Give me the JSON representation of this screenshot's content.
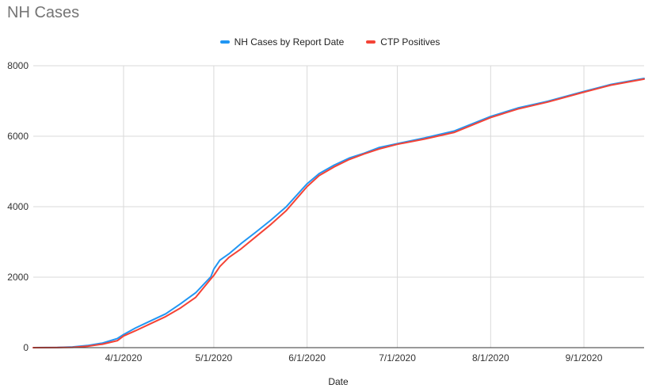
{
  "title": "NH Cases",
  "chart_data": {
    "type": "line",
    "title": "NH Cases",
    "xlabel": "Date",
    "ylabel": "",
    "ylim": [
      0,
      8000
    ],
    "yticks": [
      0,
      2000,
      4000,
      6000,
      8000
    ],
    "xlim": [
      "2020-03-02",
      "2020-09-21"
    ],
    "xticks": [
      {
        "date": "2020-04-01",
        "label": "4/1/2020"
      },
      {
        "date": "2020-05-01",
        "label": "5/1/2020"
      },
      {
        "date": "2020-06-01",
        "label": "6/1/2020"
      },
      {
        "date": "2020-07-01",
        "label": "7/1/2020"
      },
      {
        "date": "2020-08-01",
        "label": "8/1/2020"
      },
      {
        "date": "2020-09-01",
        "label": "9/1/2020"
      }
    ],
    "grid": true,
    "legend_position": "top",
    "series": [
      {
        "name": "NH Cases by Report Date",
        "color": "#2196f3",
        "points": [
          [
            "2020-03-02",
            0
          ],
          [
            "2020-03-10",
            5
          ],
          [
            "2020-03-15",
            20
          ],
          [
            "2020-03-20",
            60
          ],
          [
            "2020-03-25",
            130
          ],
          [
            "2020-03-30",
            260
          ],
          [
            "2020-04-01",
            370
          ],
          [
            "2020-04-05",
            560
          ],
          [
            "2020-04-10",
            760
          ],
          [
            "2020-04-15",
            960
          ],
          [
            "2020-04-20",
            1250
          ],
          [
            "2020-04-25",
            1560
          ],
          [
            "2020-04-30",
            2010
          ],
          [
            "2020-05-01",
            2230
          ],
          [
            "2020-05-03",
            2480
          ],
          [
            "2020-05-06",
            2660
          ],
          [
            "2020-05-10",
            2950
          ],
          [
            "2020-05-15",
            3280
          ],
          [
            "2020-05-20",
            3620
          ],
          [
            "2020-05-25",
            3990
          ],
          [
            "2020-06-01",
            4650
          ],
          [
            "2020-06-05",
            4940
          ],
          [
            "2020-06-10",
            5180
          ],
          [
            "2020-06-15",
            5380
          ],
          [
            "2020-06-20",
            5520
          ],
          [
            "2020-06-25",
            5680
          ],
          [
            "2020-07-01",
            5790
          ],
          [
            "2020-07-10",
            5950
          ],
          [
            "2020-07-20",
            6150
          ],
          [
            "2020-08-01",
            6560
          ],
          [
            "2020-08-10",
            6800
          ],
          [
            "2020-08-20",
            6990
          ],
          [
            "2020-09-01",
            7270
          ],
          [
            "2020-09-10",
            7470
          ],
          [
            "2020-09-21",
            7640
          ]
        ]
      },
      {
        "name": "CTP Positives",
        "color": "#f44336",
        "points": [
          [
            "2020-03-02",
            0
          ],
          [
            "2020-03-10",
            2
          ],
          [
            "2020-03-15",
            10
          ],
          [
            "2020-03-20",
            40
          ],
          [
            "2020-03-25",
            100
          ],
          [
            "2020-03-30",
            200
          ],
          [
            "2020-04-01",
            330
          ],
          [
            "2020-04-05",
            480
          ],
          [
            "2020-04-10",
            680
          ],
          [
            "2020-04-15",
            880
          ],
          [
            "2020-04-20",
            1130
          ],
          [
            "2020-04-25",
            1430
          ],
          [
            "2020-04-30",
            1950
          ],
          [
            "2020-05-01",
            2050
          ],
          [
            "2020-05-03",
            2300
          ],
          [
            "2020-05-06",
            2560
          ],
          [
            "2020-05-10",
            2800
          ],
          [
            "2020-05-15",
            3150
          ],
          [
            "2020-05-20",
            3500
          ],
          [
            "2020-05-25",
            3880
          ],
          [
            "2020-06-01",
            4570
          ],
          [
            "2020-06-05",
            4880
          ],
          [
            "2020-06-10",
            5130
          ],
          [
            "2020-06-15",
            5340
          ],
          [
            "2020-06-20",
            5500
          ],
          [
            "2020-06-25",
            5640
          ],
          [
            "2020-07-01",
            5770
          ],
          [
            "2020-07-10",
            5920
          ],
          [
            "2020-07-20",
            6110
          ],
          [
            "2020-08-01",
            6530
          ],
          [
            "2020-08-10",
            6770
          ],
          [
            "2020-08-20",
            6970
          ],
          [
            "2020-09-01",
            7250
          ],
          [
            "2020-09-10",
            7450
          ],
          [
            "2020-09-21",
            7620
          ]
        ]
      }
    ]
  }
}
